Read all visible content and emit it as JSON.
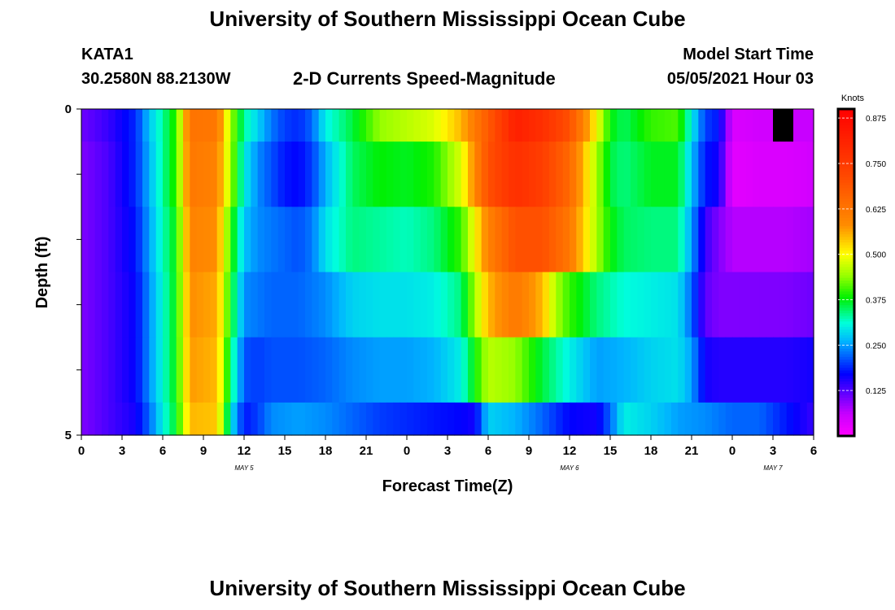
{
  "header": {
    "title": "University of Southern Mississippi Ocean Cube",
    "station": "KATA1",
    "coordinates": "30.2580N  88.2130W",
    "product": "2-D Currents Speed-Magnitude",
    "model_start_label": "Model Start Time",
    "model_start_value": "05/05/2021 Hour 03"
  },
  "footer": {
    "title": "University of Southern Mississippi Ocean Cube"
  },
  "chart_data": {
    "type": "heatmap",
    "xlabel": "Forecast Time(Z)",
    "ylabel": "Depth (ft)",
    "x_range_hours": [
      0,
      54
    ],
    "y_range_ft": [
      0,
      5
    ],
    "x_tick_labels": [
      "0",
      "3",
      "6",
      "9",
      "12",
      "15",
      "18",
      "21",
      "0",
      "3",
      "6",
      "9",
      "12",
      "15",
      "18",
      "21",
      "0",
      "3",
      "6"
    ],
    "y_tick_labels": [
      "0",
      "5"
    ],
    "date_labels": [
      {
        "label": "MAY 5",
        "hour": 12
      },
      {
        "label": "MAY 6",
        "hour": 36
      },
      {
        "label": "MAY 7",
        "hour": 51
      }
    ],
    "colorbar": {
      "unit": "Knots",
      "ticks": [
        "0.125",
        "0.250",
        "0.375",
        "0.500",
        "0.625",
        "0.750",
        "0.875"
      ],
      "range": [
        0,
        0.9
      ],
      "colormap": "rainbow magenta-blue-cyan-green-yellow-red"
    },
    "depth_layers_ft": [
      0.0,
      0.5,
      1.5,
      2.5,
      3.5,
      4.5
    ],
    "speed_knots_by_layer": [
      {
        "depth_ft": 0.0,
        "speed": [
          [
            0,
            0.11
          ],
          [
            2,
            0.14
          ],
          [
            4,
            0.19
          ],
          [
            5,
            0.27
          ],
          [
            6,
            0.33
          ],
          [
            7,
            0.4
          ],
          [
            8,
            0.63
          ],
          [
            10,
            0.62
          ],
          [
            11,
            0.45
          ],
          [
            12,
            0.33
          ],
          [
            13,
            0.28
          ],
          [
            14,
            0.23
          ],
          [
            15,
            0.2
          ],
          [
            16,
            0.19
          ],
          [
            17,
            0.22
          ],
          [
            18,
            0.3
          ],
          [
            20,
            0.36
          ],
          [
            22,
            0.44
          ],
          [
            24,
            0.46
          ],
          [
            26,
            0.48
          ],
          [
            28,
            0.55
          ],
          [
            30,
            0.68
          ],
          [
            32,
            0.82
          ],
          [
            34,
            0.78
          ],
          [
            36,
            0.7
          ],
          [
            38,
            0.5
          ],
          [
            39,
            0.38
          ],
          [
            40,
            0.35
          ],
          [
            42,
            0.4
          ],
          [
            44,
            0.41
          ],
          [
            45,
            0.3
          ],
          [
            46,
            0.2
          ],
          [
            47,
            0.18
          ],
          [
            48,
            0.04
          ],
          [
            50,
            0.05
          ],
          [
            52,
            null
          ],
          [
            53,
            0.06
          ],
          [
            54,
            0.06
          ]
        ]
      },
      {
        "depth_ft": 0.5,
        "speed": [
          [
            0,
            0.1
          ],
          [
            2,
            0.13
          ],
          [
            4,
            0.19
          ],
          [
            5,
            0.26
          ],
          [
            6,
            0.33
          ],
          [
            7,
            0.4
          ],
          [
            8,
            0.62
          ],
          [
            10,
            0.6
          ],
          [
            11,
            0.45
          ],
          [
            12,
            0.3
          ],
          [
            13,
            0.24
          ],
          [
            14,
            0.21
          ],
          [
            15,
            0.18
          ],
          [
            16,
            0.17
          ],
          [
            17,
            0.2
          ],
          [
            18,
            0.26
          ],
          [
            20,
            0.35
          ],
          [
            22,
            0.38
          ],
          [
            24,
            0.37
          ],
          [
            26,
            0.39
          ],
          [
            28,
            0.48
          ],
          [
            30,
            0.7
          ],
          [
            32,
            0.78
          ],
          [
            34,
            0.74
          ],
          [
            36,
            0.65
          ],
          [
            38,
            0.45
          ],
          [
            39,
            0.36
          ],
          [
            40,
            0.34
          ],
          [
            42,
            0.37
          ],
          [
            44,
            0.37
          ],
          [
            45,
            0.27
          ],
          [
            46,
            0.18
          ],
          [
            47,
            0.16
          ],
          [
            48,
            0.03
          ],
          [
            50,
            0.04
          ],
          [
            52,
            0.04
          ],
          [
            54,
            0.05
          ]
        ]
      },
      {
        "depth_ft": 1.5,
        "speed": [
          [
            0,
            0.1
          ],
          [
            2,
            0.13
          ],
          [
            4,
            0.18
          ],
          [
            5,
            0.25
          ],
          [
            6,
            0.32
          ],
          [
            7,
            0.38
          ],
          [
            8,
            0.6
          ],
          [
            10,
            0.58
          ],
          [
            11,
            0.4
          ],
          [
            12,
            0.27
          ],
          [
            13,
            0.24
          ],
          [
            14,
            0.23
          ],
          [
            15,
            0.22
          ],
          [
            16,
            0.21
          ],
          [
            17,
            0.23
          ],
          [
            18,
            0.29
          ],
          [
            20,
            0.34
          ],
          [
            22,
            0.33
          ],
          [
            24,
            0.32
          ],
          [
            26,
            0.34
          ],
          [
            28,
            0.4
          ],
          [
            30,
            0.6
          ],
          [
            32,
            0.7
          ],
          [
            34,
            0.7
          ],
          [
            36,
            0.62
          ],
          [
            38,
            0.45
          ],
          [
            39,
            0.38
          ],
          [
            40,
            0.35
          ],
          [
            42,
            0.34
          ],
          [
            44,
            0.34
          ],
          [
            45,
            0.25
          ],
          [
            46,
            0.14
          ],
          [
            47,
            0.1
          ],
          [
            48,
            0.07
          ],
          [
            50,
            0.07
          ],
          [
            52,
            0.07
          ],
          [
            54,
            0.08
          ]
        ]
      },
      {
        "depth_ft": 2.5,
        "speed": [
          [
            0,
            0.1
          ],
          [
            2,
            0.13
          ],
          [
            4,
            0.17
          ],
          [
            5,
            0.24
          ],
          [
            6,
            0.31
          ],
          [
            7,
            0.38
          ],
          [
            8,
            0.58
          ],
          [
            10,
            0.56
          ],
          [
            11,
            0.38
          ],
          [
            12,
            0.24
          ],
          [
            14,
            0.22
          ],
          [
            16,
            0.22
          ],
          [
            18,
            0.24
          ],
          [
            20,
            0.28
          ],
          [
            22,
            0.29
          ],
          [
            24,
            0.29
          ],
          [
            26,
            0.3
          ],
          [
            28,
            0.34
          ],
          [
            30,
            0.55
          ],
          [
            32,
            0.62
          ],
          [
            34,
            0.55
          ],
          [
            35,
            0.45
          ],
          [
            36,
            0.4
          ],
          [
            38,
            0.34
          ],
          [
            40,
            0.31
          ],
          [
            42,
            0.3
          ],
          [
            44,
            0.29
          ],
          [
            45,
            0.22
          ],
          [
            46,
            0.12
          ],
          [
            47,
            0.1
          ],
          [
            48,
            0.1
          ],
          [
            50,
            0.1
          ],
          [
            52,
            0.1
          ],
          [
            54,
            0.11
          ]
        ]
      },
      {
        "depth_ft": 3.5,
        "speed": [
          [
            0,
            0.1
          ],
          [
            2,
            0.13
          ],
          [
            4,
            0.17
          ],
          [
            5,
            0.24
          ],
          [
            6,
            0.31
          ],
          [
            7,
            0.38
          ],
          [
            8,
            0.57
          ],
          [
            10,
            0.55
          ],
          [
            11,
            0.35
          ],
          [
            12,
            0.21
          ],
          [
            13,
            0.2
          ],
          [
            14,
            0.21
          ],
          [
            16,
            0.21
          ],
          [
            18,
            0.22
          ],
          [
            20,
            0.24
          ],
          [
            22,
            0.25
          ],
          [
            24,
            0.25
          ],
          [
            26,
            0.26
          ],
          [
            28,
            0.3
          ],
          [
            30,
            0.46
          ],
          [
            32,
            0.44
          ],
          [
            34,
            0.36
          ],
          [
            36,
            0.3
          ],
          [
            38,
            0.25
          ],
          [
            40,
            0.26
          ],
          [
            42,
            0.28
          ],
          [
            44,
            0.29
          ],
          [
            45,
            0.25
          ],
          [
            46,
            0.16
          ],
          [
            47,
            0.15
          ],
          [
            48,
            0.15
          ],
          [
            50,
            0.15
          ],
          [
            52,
            0.15
          ],
          [
            54,
            0.16
          ]
        ]
      },
      {
        "depth_ft": 4.5,
        "speed": [
          [
            0,
            0.1
          ],
          [
            2,
            0.13
          ],
          [
            4,
            0.16
          ],
          [
            5,
            0.22
          ],
          [
            6,
            0.3
          ],
          [
            7,
            0.37
          ],
          [
            8,
            0.55
          ],
          [
            10,
            0.54
          ],
          [
            11,
            0.3
          ],
          [
            12,
            0.18
          ],
          [
            13,
            0.2
          ],
          [
            14,
            0.24
          ],
          [
            16,
            0.25
          ],
          [
            18,
            0.24
          ],
          [
            20,
            0.22
          ],
          [
            22,
            0.2
          ],
          [
            24,
            0.19
          ],
          [
            26,
            0.18
          ],
          [
            28,
            0.17
          ],
          [
            29,
            0.16
          ],
          [
            30,
            0.28
          ],
          [
            32,
            0.26
          ],
          [
            34,
            0.22
          ],
          [
            36,
            0.17
          ],
          [
            38,
            0.16
          ],
          [
            39,
            0.22
          ],
          [
            40,
            0.3
          ],
          [
            42,
            0.28
          ],
          [
            44,
            0.25
          ],
          [
            46,
            0.24
          ],
          [
            48,
            0.22
          ],
          [
            50,
            0.22
          ],
          [
            52,
            0.18
          ],
          [
            54,
            0.14
          ]
        ]
      }
    ]
  }
}
